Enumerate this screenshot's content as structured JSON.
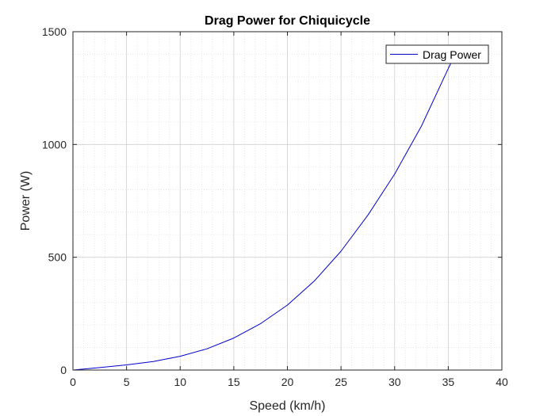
{
  "chart_data": {
    "type": "line",
    "title": "Drag Power for Chiquicycle",
    "xlabel": "Speed (km/h)",
    "ylabel": "Power (W)",
    "xlim": [
      0,
      40
    ],
    "ylim": [
      0,
      1500
    ],
    "x_ticks": [
      0,
      5,
      10,
      15,
      20,
      25,
      30,
      35,
      40
    ],
    "y_ticks": [
      0,
      500,
      1000,
      1500
    ],
    "x_tick_labels": [
      "0",
      "5",
      "10",
      "15",
      "20",
      "25",
      "30",
      "35",
      "40"
    ],
    "y_tick_labels": [
      "0",
      "500",
      "1000",
      "1500"
    ],
    "grid": true,
    "minor_grid": true,
    "legend_position": "top-right",
    "series": [
      {
        "name": "Drag Power",
        "color": "#0000cc",
        "x": [
          0,
          2.5,
          5,
          7.5,
          10,
          12.5,
          15,
          17.5,
          20,
          22.5,
          25,
          27.5,
          30,
          32.5,
          35,
          35.8
        ],
        "y": [
          0,
          11,
          23,
          38,
          61,
          94,
          142,
          206,
          288,
          394,
          527,
          686,
          869,
          1082,
          1337,
          1414
        ]
      }
    ]
  }
}
